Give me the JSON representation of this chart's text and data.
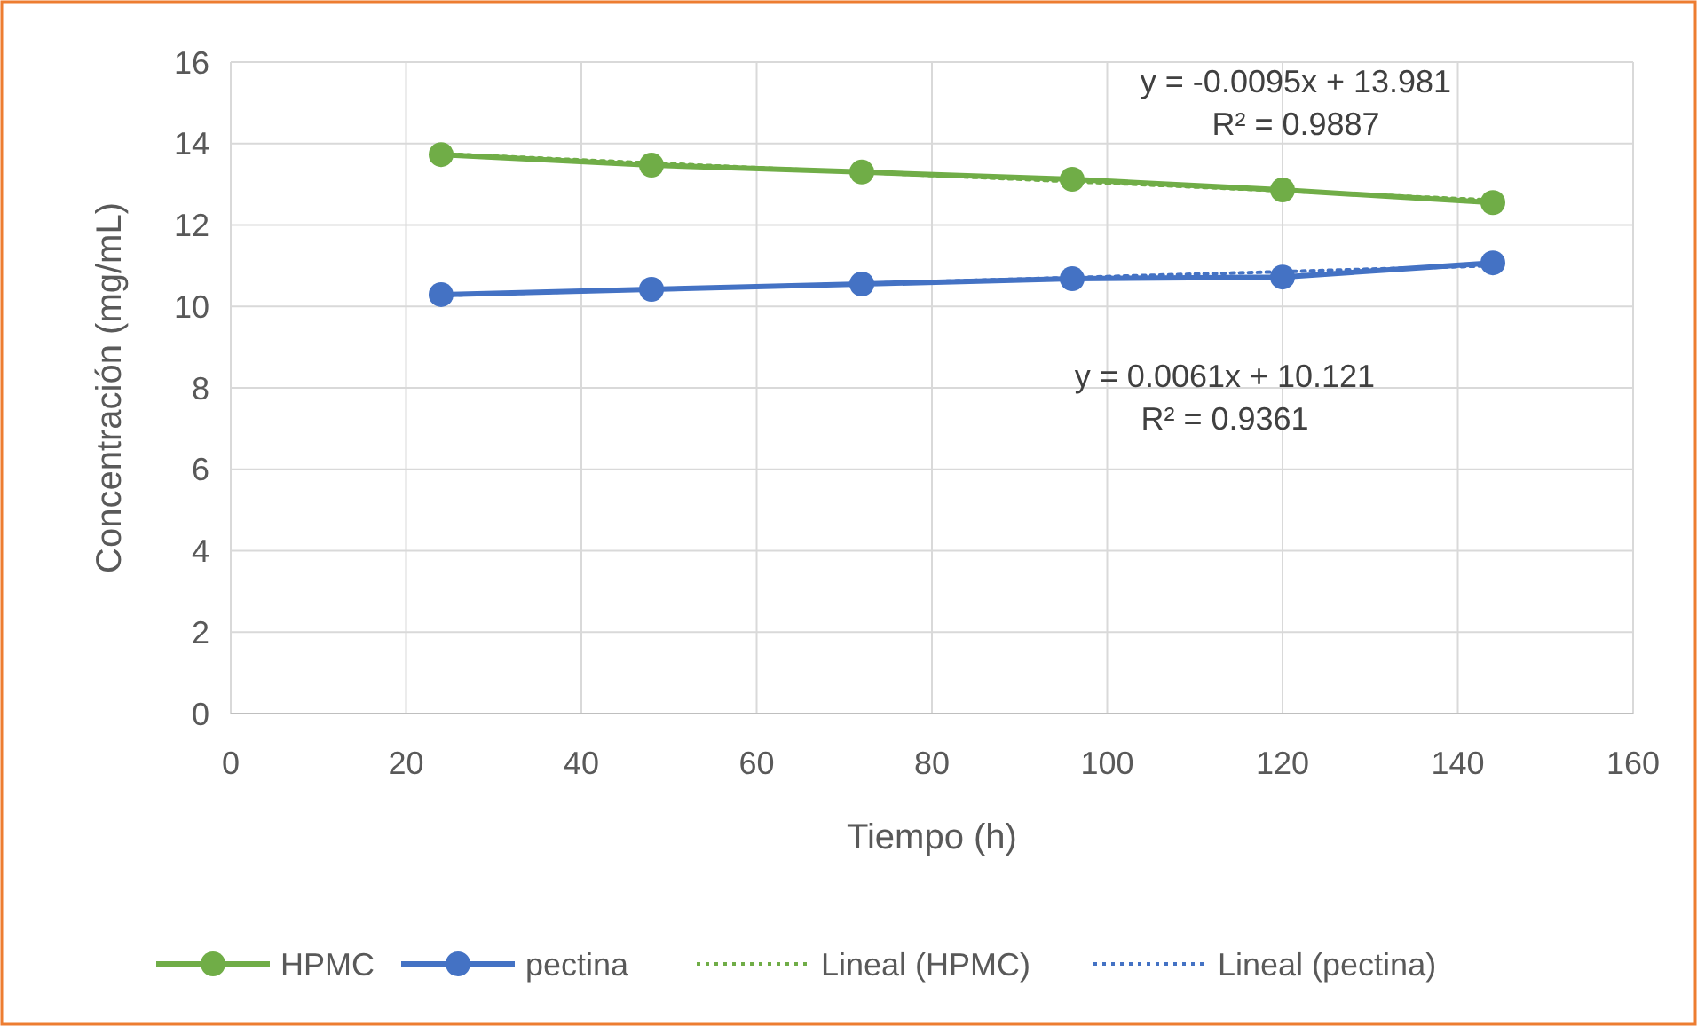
{
  "chart_data": {
    "type": "line",
    "xlabel": "Tiempo (h)",
    "ylabel": "Concentración (mg/mL)",
    "xlim": [
      0,
      160
    ],
    "xticks": [
      0,
      20,
      40,
      60,
      80,
      100,
      120,
      140,
      160
    ],
    "ylim": [
      0,
      16
    ],
    "yticks": [
      0,
      2,
      4,
      6,
      8,
      10,
      12,
      14,
      16
    ],
    "grid": true,
    "legend": "bottom",
    "marker": "circle",
    "line_style": "solid",
    "series": [
      {
        "name": "HPMC",
        "color": "#70ad47",
        "x": [
          24,
          48,
          72,
          96,
          120,
          144
        ],
        "values": [
          13.73,
          13.47,
          13.3,
          13.12,
          12.86,
          12.55
        ]
      },
      {
        "name": "pectina",
        "color": "#4472c4",
        "x": [
          24,
          48,
          72,
          96,
          120,
          144
        ],
        "values": [
          10.29,
          10.42,
          10.55,
          10.68,
          10.72,
          11.07
        ]
      },
      {
        "name": "Lineal (HPMC)",
        "color": "#70ad47",
        "x": [
          24,
          144
        ],
        "values": [
          13.75,
          12.61
        ],
        "marker": "none",
        "line_style": "dotted"
      },
      {
        "name": "Lineal (pectina)",
        "color": "#4472c4",
        "x": [
          24,
          144
        ],
        "values": [
          10.27,
          11.0
        ],
        "marker": "none",
        "line_style": "dotted"
      }
    ],
    "annotations": [
      "y = -0.0095x + 13.981\nR² = 0.9887",
      "y = 0.0061x + 10.121\nR² = 0.9361"
    ]
  }
}
